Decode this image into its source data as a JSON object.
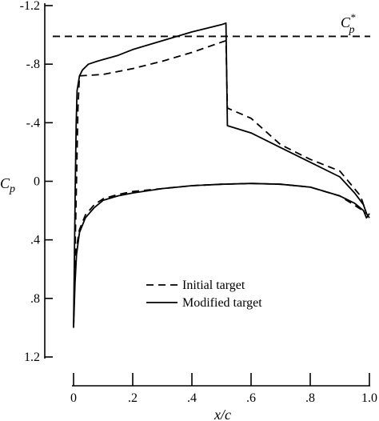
{
  "chart_data": {
    "type": "line",
    "xlabel": "x/c",
    "ylabel": "Cp",
    "ylabel_main": "C",
    "ylabel_sub": "p",
    "xlim": [
      0,
      1.0
    ],
    "ylim": [
      1.2,
      -1.2
    ],
    "y_inverted": true,
    "x_ticks": [
      0,
      0.2,
      0.4,
      0.6,
      0.8,
      1.0
    ],
    "x_tick_labels": [
      "0",
      ".2",
      ".4",
      ".6",
      ".8",
      "1.0"
    ],
    "y_ticks": [
      -1.2,
      -0.8,
      -0.4,
      0,
      0.4,
      0.8,
      1.2
    ],
    "y_tick_labels": [
      "-1.2",
      "-.8",
      "-.4",
      "0",
      ".4",
      ".8",
      "1.2"
    ],
    "grid": false,
    "legend_placement": "lower-center",
    "reference_line": {
      "name": "Cp*",
      "label_main": "C",
      "label_sub": "p",
      "label_sup": "*",
      "y": -0.99,
      "style": "dashed"
    },
    "series": [
      {
        "name": "Initial target",
        "style": "dashed",
        "upper": [
          [
            0.0,
            1.0
          ],
          [
            0.005,
            0.5
          ],
          [
            0.01,
            0.0
          ],
          [
            0.015,
            -0.5
          ],
          [
            0.02,
            -0.72
          ],
          [
            0.1,
            -0.73
          ],
          [
            0.2,
            -0.77
          ],
          [
            0.3,
            -0.82
          ],
          [
            0.4,
            -0.88
          ],
          [
            0.5,
            -0.95
          ],
          [
            0.515,
            -0.96
          ],
          [
            0.52,
            -0.5
          ],
          [
            0.6,
            -0.43
          ],
          [
            0.7,
            -0.25
          ],
          [
            0.8,
            -0.15
          ],
          [
            0.9,
            -0.07
          ],
          [
            0.97,
            0.1
          ],
          [
            0.99,
            0.22
          ]
        ],
        "lower": [
          [
            0.0,
            1.0
          ],
          [
            0.005,
            0.6
          ],
          [
            0.01,
            0.45
          ],
          [
            0.02,
            0.33
          ],
          [
            0.04,
            0.23
          ],
          [
            0.07,
            0.16
          ],
          [
            0.1,
            0.12
          ],
          [
            0.15,
            0.09
          ],
          [
            0.2,
            0.07
          ],
          [
            0.3,
            0.05
          ],
          [
            0.4,
            0.03
          ],
          [
            0.5,
            0.02
          ],
          [
            0.6,
            0.015
          ],
          [
            0.7,
            0.02
          ],
          [
            0.8,
            0.04
          ],
          [
            0.9,
            0.1
          ],
          [
            0.97,
            0.19
          ],
          [
            0.99,
            0.22
          ]
        ]
      },
      {
        "name": "Modified target",
        "style": "solid",
        "upper": [
          [
            0.0,
            1.0
          ],
          [
            0.003,
            0.5
          ],
          [
            0.006,
            0.0
          ],
          [
            0.009,
            -0.4
          ],
          [
            0.012,
            -0.62
          ],
          [
            0.02,
            -0.72
          ],
          [
            0.03,
            -0.76
          ],
          [
            0.05,
            -0.8
          ],
          [
            0.08,
            -0.82
          ],
          [
            0.15,
            -0.86
          ],
          [
            0.2,
            -0.9
          ],
          [
            0.3,
            -0.96
          ],
          [
            0.4,
            -1.02
          ],
          [
            0.5,
            -1.07
          ],
          [
            0.515,
            -1.08
          ],
          [
            0.52,
            -0.38
          ],
          [
            0.6,
            -0.33
          ],
          [
            0.7,
            -0.23
          ],
          [
            0.8,
            -0.13
          ],
          [
            0.9,
            -0.03
          ],
          [
            0.95,
            0.08
          ],
          [
            0.98,
            0.16
          ],
          [
            0.99,
            0.22
          ],
          [
            1.0,
            0.25
          ]
        ],
        "lower": [
          [
            0.0,
            1.0
          ],
          [
            0.005,
            0.7
          ],
          [
            0.01,
            0.5
          ],
          [
            0.02,
            0.35
          ],
          [
            0.04,
            0.25
          ],
          [
            0.07,
            0.18
          ],
          [
            0.1,
            0.13
          ],
          [
            0.15,
            0.1
          ],
          [
            0.2,
            0.08
          ],
          [
            0.3,
            0.05
          ],
          [
            0.4,
            0.03
          ],
          [
            0.5,
            0.02
          ],
          [
            0.6,
            0.015
          ],
          [
            0.7,
            0.02
          ],
          [
            0.8,
            0.04
          ],
          [
            0.9,
            0.1
          ],
          [
            0.95,
            0.15
          ],
          [
            0.98,
            0.2
          ],
          [
            0.99,
            0.25
          ],
          [
            1.0,
            0.22
          ]
        ]
      }
    ]
  }
}
